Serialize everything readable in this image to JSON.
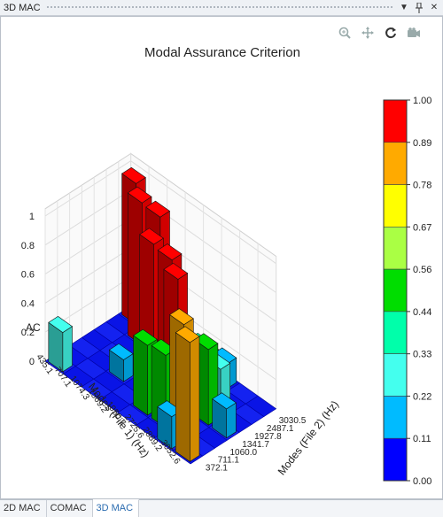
{
  "window": {
    "title": "3D MAC"
  },
  "toolbar": {
    "icons": [
      "zoom-icon",
      "pan-icon",
      "rotate-icon",
      "camera-icon"
    ]
  },
  "chart_data": {
    "type": "bar3d",
    "title": "Modal Assurance Criterion",
    "zlabel": "AC",
    "xlabel": "Modes (File 1) (Hz)",
    "ylabel": "Modes (File 2) (Hz)",
    "z_ticks": [
      "0",
      "0.2",
      "0.4",
      "0.6",
      "0.8",
      "1"
    ],
    "x_ticks": [
      "435.1",
      "707.1",
      "1074.3",
      "1569.2",
      "1950.7",
      "2725.6",
      "2889.2",
      "3052.6"
    ],
    "y_ticks": [
      "372.1",
      "711.1",
      "1060.0",
      "1341.7",
      "1927.8",
      "2487.1",
      "3030.5"
    ],
    "colorbar": {
      "labels": [
        "1.00",
        "0.89",
        "0.78",
        "0.67",
        "0.56",
        "0.44",
        "0.33",
        "0.22",
        "0.11",
        "0.00"
      ],
      "colors": [
        "#ff0000",
        "#ffaa00",
        "#ffff00",
        "#aaff44",
        "#00dd00",
        "#00ffaa",
        "#44ffee",
        "#00bbff",
        "#0000ff"
      ]
    },
    "bars": [
      {
        "x": 0,
        "y": 6,
        "value": 0.97
      },
      {
        "x": 1,
        "y": 5,
        "value": 0.98
      },
      {
        "x": 2,
        "y": 5,
        "value": 0.97
      },
      {
        "x": 3,
        "y": 3,
        "value": 0.98
      },
      {
        "x": 4,
        "y": 3,
        "value": 0.96
      },
      {
        "x": 5,
        "y": 2,
        "value": 0.97
      },
      {
        "x": 6,
        "y": 1,
        "value": 0.8
      },
      {
        "x": 7,
        "y": 0,
        "value": 0.82
      },
      {
        "x": 0,
        "y": 0,
        "value": 0.27
      },
      {
        "x": 4,
        "y": 1,
        "value": 0.48
      },
      {
        "x": 5,
        "y": 1,
        "value": 0.5
      },
      {
        "x": 6,
        "y": 3,
        "value": 0.52
      },
      {
        "x": 5,
        "y": 4,
        "value": 0.38
      },
      {
        "x": 6,
        "y": 4,
        "value": 0.33
      },
      {
        "x": 4,
        "y": 4,
        "value": 0.34
      },
      {
        "x": 7,
        "y": 3,
        "value": 0.2
      },
      {
        "x": 4,
        "y": 6,
        "value": 0.14
      },
      {
        "x": 5,
        "y": 6,
        "value": 0.17
      },
      {
        "x": 2,
        "y": 2,
        "value": 0.15
      },
      {
        "x": 6,
        "y": 0,
        "value": 0.22
      }
    ]
  },
  "tabs": [
    {
      "label": "2D MAC",
      "active": false
    },
    {
      "label": "COMAC",
      "active": false
    },
    {
      "label": "3D MAC",
      "active": true
    }
  ]
}
